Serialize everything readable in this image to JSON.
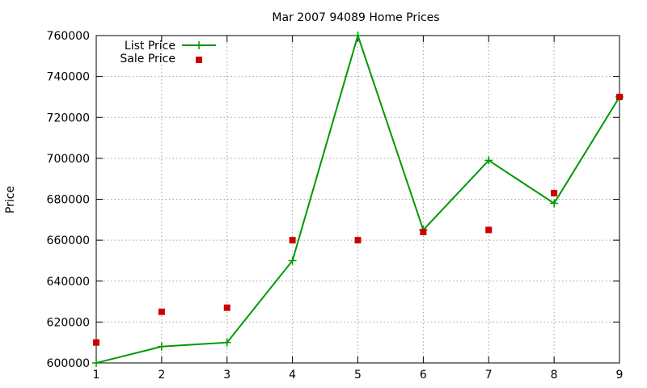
{
  "chart_data": {
    "type": "line",
    "title": "Mar 2007 94089 Home Prices",
    "xlabel": "",
    "ylabel": "Price",
    "x": [
      1,
      2,
      3,
      4,
      5,
      6,
      7,
      8,
      9
    ],
    "xlim": [
      1,
      9
    ],
    "ylim": [
      600000,
      760000
    ],
    "x_ticks": [
      1,
      2,
      3,
      4,
      5,
      6,
      7,
      8,
      9
    ],
    "y_ticks": [
      600000,
      620000,
      640000,
      660000,
      680000,
      700000,
      720000,
      740000,
      760000
    ],
    "grid": true,
    "legend_position": "top-left",
    "series": [
      {
        "name": "List Price",
        "style": "linespoints",
        "marker": "plus",
        "color": "#009900",
        "values": [
          600000,
          608000,
          610000,
          650000,
          760000,
          665000,
          699000,
          678000,
          730000
        ]
      },
      {
        "name": "Sale Price",
        "style": "points",
        "marker": "square",
        "color": "#cc0000",
        "values": [
          610000,
          625000,
          627000,
          660000,
          660000,
          664000,
          665000,
          683000,
          730000
        ]
      }
    ]
  }
}
